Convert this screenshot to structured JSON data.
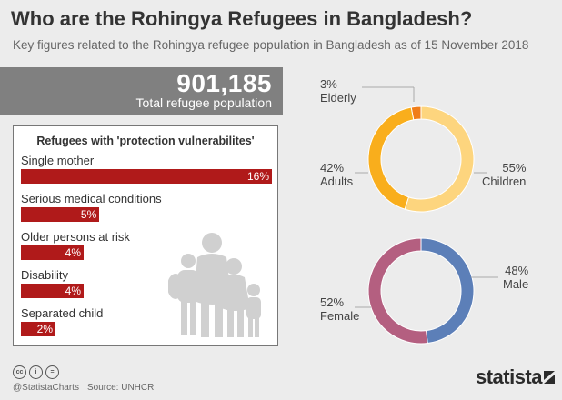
{
  "header": {
    "title": "Who are the Rohingya Refugees in Bangladesh?",
    "subtitle": "Key figures related to the Rohingya refugee population in Bangladesh as of 15 November 2018"
  },
  "total": {
    "value": "901,185",
    "label": "Total refugee population"
  },
  "colors": {
    "bar": "#b01a1a",
    "elderly": "#f07d19",
    "adults": "#f9ae1c",
    "children": "#fdd57e",
    "male": "#5c7fb8",
    "female": "#b45f80",
    "leader": "#aaaaaa"
  },
  "chart_data": [
    {
      "type": "bar",
      "title": "Refugees with 'protection vulnerabilites'",
      "categories": [
        "Single mother",
        "Serious medical conditions",
        "Older persons at risk",
        "Disability",
        "Separated child"
      ],
      "values": [
        16,
        5,
        4,
        4,
        2
      ],
      "value_labels": [
        "16%",
        "5%",
        "4%",
        "4%",
        "2%"
      ],
      "unit": "%",
      "xlim": [
        0,
        16
      ],
      "decorative_icon": "family-silhouette-icon"
    },
    {
      "type": "pie",
      "style": "donut",
      "slices": [
        {
          "name": "Elderly",
          "value": 3,
          "label": "3%",
          "color": "#f07d19"
        },
        {
          "name": "Children",
          "value": 55,
          "label": "55%",
          "color": "#fdd57e"
        },
        {
          "name": "Adults",
          "value": 42,
          "label": "42%",
          "color": "#f9ae1c"
        }
      ]
    },
    {
      "type": "pie",
      "style": "donut",
      "slices": [
        {
          "name": "Male",
          "value": 48,
          "label": "48%",
          "color": "#5c7fb8"
        },
        {
          "name": "Female",
          "value": 52,
          "label": "52%",
          "color": "#b45f80"
        }
      ]
    }
  ],
  "footer": {
    "license_icons": [
      "cc-icon",
      "by-icon",
      "nd-icon"
    ],
    "license_glyphs": [
      "cc",
      "i",
      "="
    ],
    "handle": "@StatistaCharts",
    "source": "Source: UNHCR",
    "brand": "statista"
  }
}
